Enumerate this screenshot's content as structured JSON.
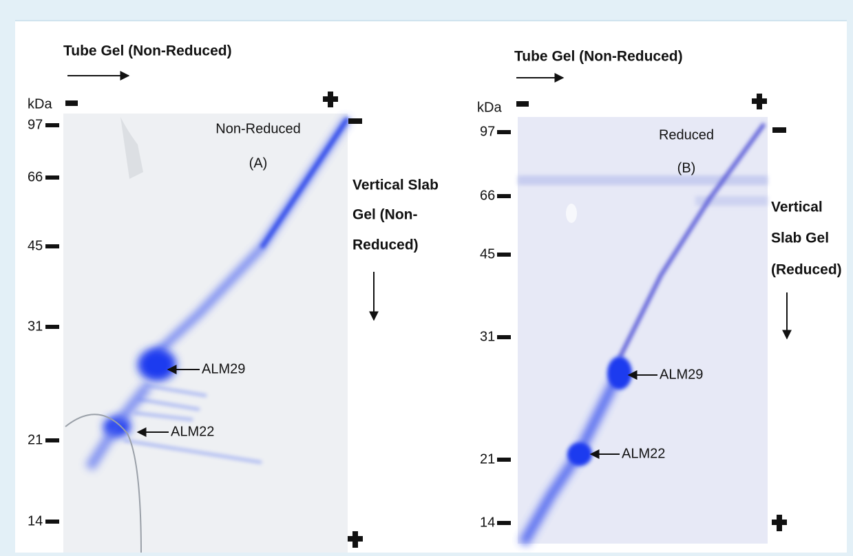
{
  "panels": [
    {
      "tube_gel_label": "Tube Gel (Non-Reduced)",
      "unit": "kDa",
      "markers": [
        97,
        66,
        45,
        31,
        21,
        14
      ],
      "gel_title": "Non-Reduced",
      "gel_sublabel": "(A)",
      "slab_label": [
        "Vertical Slab",
        "Gel (Non-",
        "Reduced)"
      ],
      "bands": [
        "ALM29",
        "ALM22"
      ]
    },
    {
      "tube_gel_label": "Tube Gel (Non-Reduced)",
      "unit": "kDa",
      "markers": [
        97,
        66,
        45,
        31,
        21,
        14
      ],
      "gel_title": "Reduced",
      "gel_sublabel": "(B)",
      "slab_label": [
        "Vertical",
        "Slab Gel",
        "(Reduced)"
      ],
      "bands": [
        "ALM29",
        "ALM22"
      ]
    }
  ]
}
